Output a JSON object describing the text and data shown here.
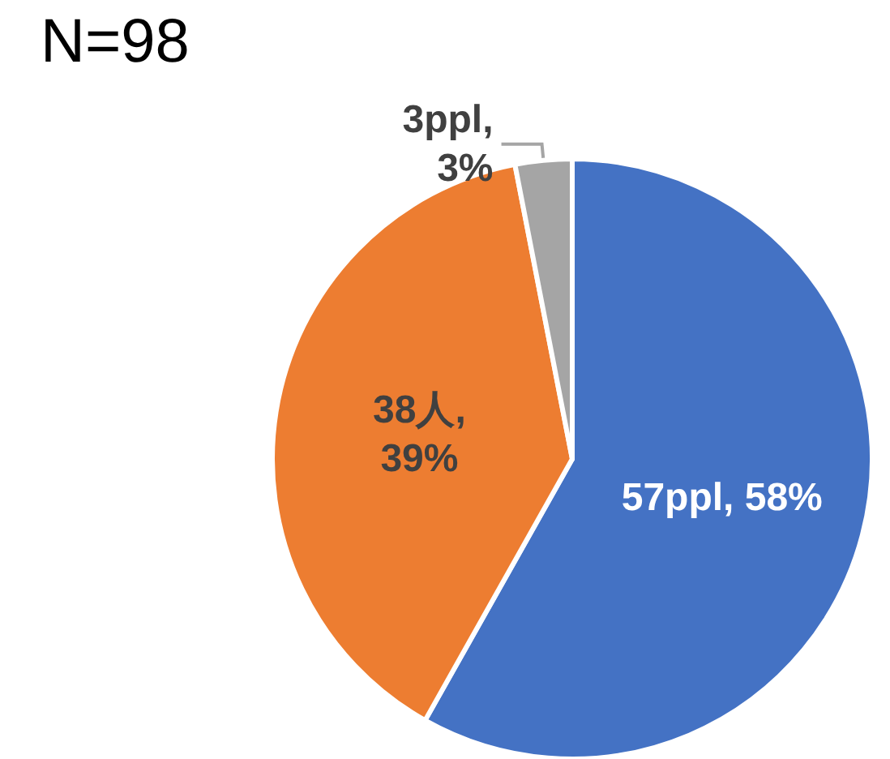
{
  "chart_data": {
    "type": "pie",
    "title": "N=98",
    "categories": [
      null,
      null,
      null
    ],
    "values": [
      57,
      38,
      3
    ],
    "colors": [
      "#4472c4",
      "#ed7d31",
      "#a5a5a5"
    ],
    "value_labels": [
      "57ppl, 58%",
      "38人, 39%",
      "3ppl, 3%"
    ]
  }
}
